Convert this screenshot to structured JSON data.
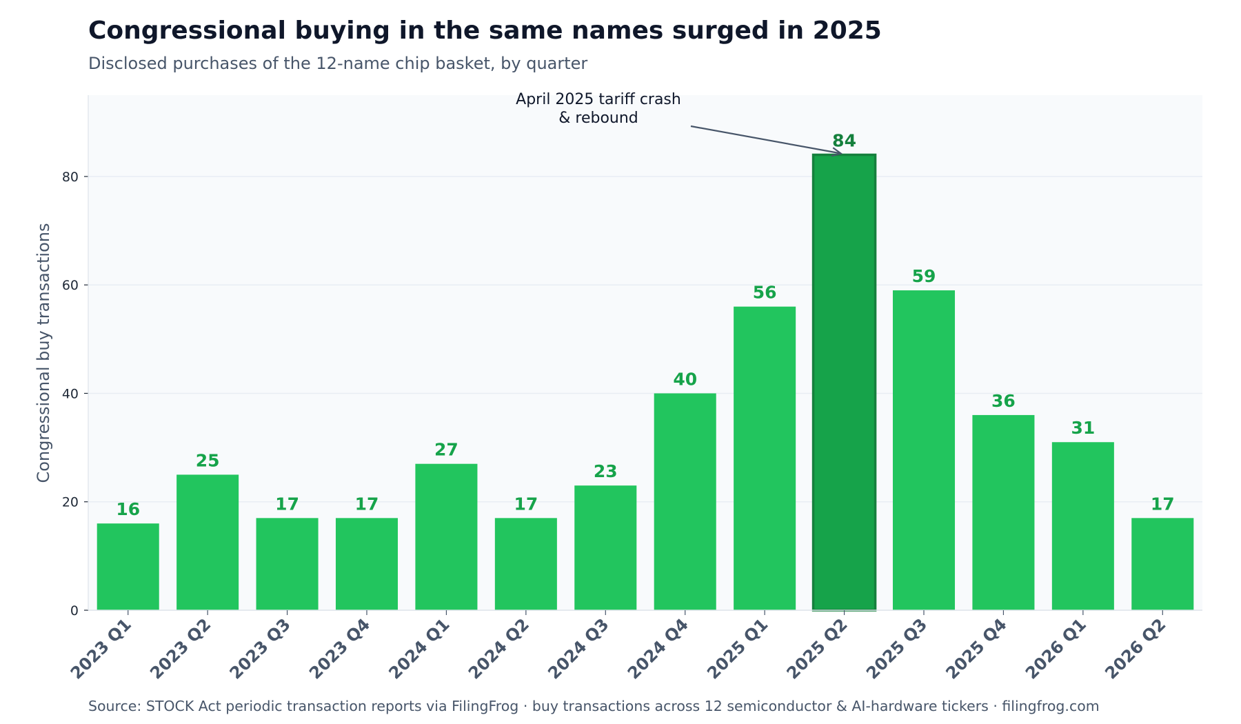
{
  "colors": {
    "bar": "#22c55e",
    "highlight_bar": "#16a34a",
    "highlight_edge": "#15803d",
    "data_label": "#16a34a",
    "highlight_label": "#15803d",
    "plot_bg": "#f8fafc",
    "grid": "#e8edf3",
    "arrow": "#475569"
  },
  "chart_data": {
    "type": "bar",
    "title": "Congressional buying in the same names surged in 2025",
    "subtitle": "Disclosed purchases of the 12-name chip basket, by quarter",
    "xlabel": "",
    "ylabel": "Congressional buy transactions",
    "categories": [
      "2023 Q1",
      "2023 Q2",
      "2023 Q3",
      "2023 Q4",
      "2024 Q1",
      "2024 Q2",
      "2024 Q3",
      "2024 Q4",
      "2025 Q1",
      "2025 Q2",
      "2025 Q3",
      "2025 Q4",
      "2026 Q1",
      "2026 Q2"
    ],
    "values": [
      16,
      25,
      17,
      17,
      27,
      17,
      23,
      40,
      56,
      84,
      59,
      36,
      31,
      17
    ],
    "data_labels": [
      "16",
      "25",
      "17",
      "17",
      "27",
      "17",
      "23",
      "40",
      "56",
      "84",
      "59",
      "36",
      "31",
      "17"
    ],
    "highlight_category": "2025 Q2",
    "ylim": [
      0,
      95
    ],
    "yticks": [
      0,
      20,
      40,
      60,
      80
    ],
    "ytick_labels": [
      "0",
      "20",
      "40",
      "60",
      "80"
    ],
    "grid": true,
    "legend": "none",
    "annotation": {
      "lines": [
        "April 2025 tariff crash",
        "& rebound"
      ],
      "target_category": "2025 Q2"
    },
    "footer": "Source: STOCK Act periodic transaction reports via FilingFrog  ·  buy transactions across 12 semiconductor & AI-hardware tickers  ·  filingfrog.com"
  }
}
